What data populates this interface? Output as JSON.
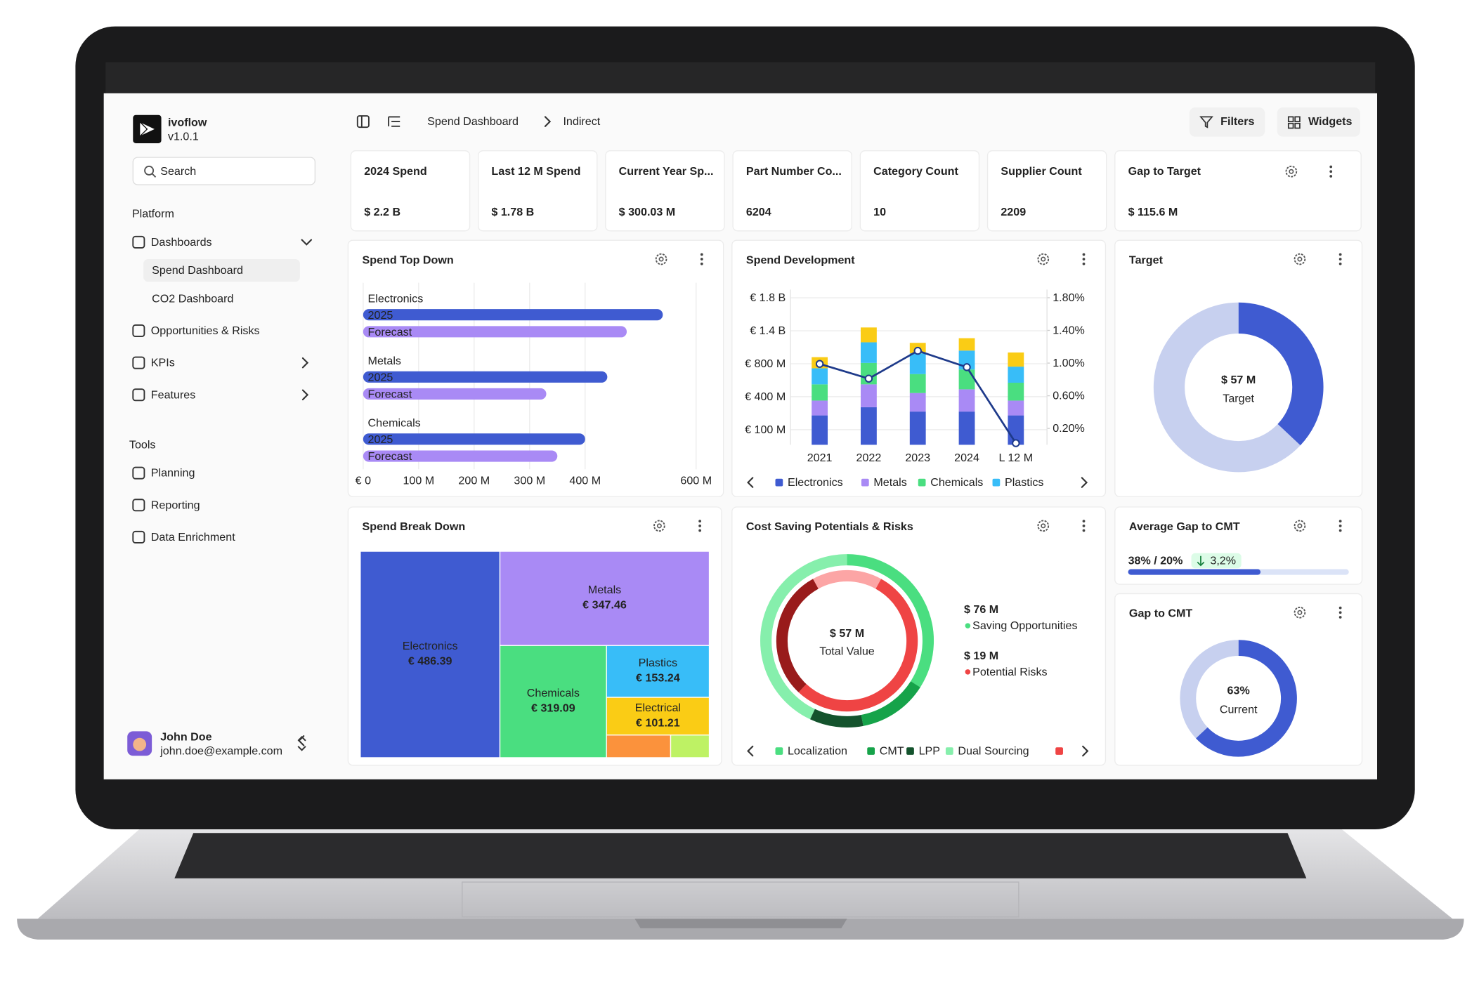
{
  "sidebar": {
    "brand": "ivoflow",
    "version": "v1.0.1",
    "search_placeholder": "Search",
    "sections": [
      {
        "title": "Platform",
        "items": [
          {
            "label": "Dashboards",
            "children": [
              "Spend Dashboard",
              "CO2 Dashboard"
            ]
          },
          {
            "label": "Opportunities & Risks"
          },
          {
            "label": "KPIs"
          },
          {
            "label": "Features"
          }
        ]
      },
      {
        "title": "Tools",
        "items": [
          {
            "label": "Planning"
          },
          {
            "label": "Reporting"
          },
          {
            "label": "Data Enrichment"
          }
        ]
      }
    ],
    "user": {
      "name": "John Doe",
      "email": "john.doe@example.com"
    }
  },
  "header": {
    "breadcrumb": [
      "Spend Dashboard",
      "Indirect"
    ],
    "buttons": [
      "Filters",
      "Widgets"
    ]
  },
  "kpi_cards": [
    {
      "label": "2024 Spend",
      "value": "$ 2.2 B"
    },
    {
      "label": "Last 12 M Spend",
      "value": "$ 1.78 B"
    },
    {
      "label": "Current Year Sp...",
      "value": "$ 300.03 M"
    },
    {
      "label": "Part Number Co...",
      "value": "6204"
    },
    {
      "label": "Category Count",
      "value": "10"
    },
    {
      "label": "Supplier Count",
      "value": "2209"
    },
    {
      "label": "Gap to Target",
      "value": "$ 115.6 M"
    }
  ],
  "chart_data": [
    {
      "type": "bar",
      "orientation": "horizontal",
      "title": "Spend Top Down",
      "categories": [
        "Electronics",
        "Metals",
        "Chemicals"
      ],
      "series": [
        {
          "name": "2025",
          "color": "#3f5bd1",
          "values": [
            540,
            440,
            400
          ]
        },
        {
          "name": "Forecast",
          "color": "#a98af5",
          "values": [
            475,
            330,
            350
          ]
        }
      ],
      "xlim": [
        0,
        600
      ],
      "xticks": [
        {
          "value": 0,
          "label": "€ 0"
        },
        {
          "value": 100,
          "label": "100 M"
        },
        {
          "value": 200,
          "label": "200 M"
        },
        {
          "value": 300,
          "label": "300 M"
        },
        {
          "value": 400,
          "label": "400 M"
        },
        {
          "value": 600,
          "label": "600 M"
        }
      ],
      "grid": true
    },
    {
      "type": "stacked_bar",
      "title": "Spend Development",
      "categories": [
        "2021",
        "2022",
        "2023",
        "2024",
        "L 12 M"
      ],
      "series": [
        {
          "name": "Electronics",
          "color": "#3f5bd1",
          "values": [
            230,
            305,
            265,
            265,
            230
          ]
        },
        {
          "name": "Metals",
          "color": "#a98af5",
          "values": [
            135,
            245,
            180,
            225,
            135
          ]
        },
        {
          "name": "Chemicals",
          "color": "#4ade80",
          "values": [
            185,
            265,
            230,
            240,
            205
          ]
        },
        {
          "name": "Plastics",
          "color": "#38bdf8",
          "values": [
            195,
            375,
            315,
            310,
            195
          ]
        },
        {
          "color": "#facc15",
          "values": [
            175,
            250,
            190,
            225,
            240
          ]
        },
        {
          "color": "#1e3a8a",
          "type": "line",
          "axis": "y2",
          "values": [
            0.99,
            0.81,
            1.15,
            0.95,
            0.02
          ]
        }
      ],
      "ylim": [
        0,
        1900
      ],
      "yticks": [
        {
          "value": 100,
          "label": "€ 100 M"
        },
        {
          "value": 400,
          "label": "€ 400 M"
        },
        {
          "value": 800,
          "label": "€ 800 M"
        },
        {
          "value": 1400,
          "label": "€ 1.4 B"
        },
        {
          "value": 1800,
          "label": "€ 1.8 B"
        }
      ],
      "y2lim": [
        0,
        1.9
      ],
      "y2ticks": [
        {
          "value": 0.2,
          "label": "0.20%"
        },
        {
          "value": 0.6,
          "label": "0.60%"
        },
        {
          "value": 1,
          "label": "1.00%"
        },
        {
          "value": 1.4,
          "label": "1.40%"
        },
        {
          "value": 1.8,
          "label": "1.80%"
        }
      ],
      "grid": true
    },
    {
      "type": "donut",
      "title": "Target",
      "center_value": "$ 57 M",
      "center_label": "Target",
      "values": [
        37,
        63
      ],
      "colors": [
        "#3f5bd1",
        "#c7d0ef"
      ]
    },
    {
      "type": "treemap",
      "title": "Spend Break Down",
      "categories": [
        "Electronics",
        "Metals",
        "Chemicals",
        "Plastics",
        "Electrical",
        null,
        null
      ],
      "values": [
        486.39,
        347.46,
        319.09,
        153.24,
        101.21,
        24,
        14
      ],
      "value_labels": [
        "€ 486.39",
        "€ 347.46",
        "€ 319.09",
        "€ 153.24",
        "€ 101.21",
        null,
        null
      ],
      "colors": [
        "#3f5bd1",
        "#a98af5",
        "#4ade80",
        "#38bdf8",
        "#facc15",
        "#fb923c",
        "#bef264"
      ]
    },
    {
      "type": "donut",
      "title": "Cost Saving Potentials & Risks",
      "center_value": "$ 57 M",
      "center_label": "Total Value",
      "rings": [
        {
          "categories": [
            "Localization",
            "CMT",
            "LPP",
            "Dual Sourcing"
          ],
          "values": [
            34,
            13,
            10,
            43
          ],
          "colors": [
            "#4ade80",
            "#16a34a",
            "#14532d",
            "#86efac"
          ]
        },
        {
          "values": [
            16,
            54,
            30
          ],
          "colors": [
            "#fca5a5",
            "#ef4444",
            "#991b1b"
          ]
        }
      ],
      "stats": [
        {
          "value": "$ 76 M",
          "label": "Saving Opportunities"
        },
        {
          "value": "$ 19 M",
          "label": "Potential Risks"
        }
      ]
    },
    {
      "type": "progress",
      "title": "Average Gap to CMT",
      "summary": "38% / 20%",
      "change": "3,2%",
      "value": 60,
      "xlim": [
        0,
        100
      ],
      "color": "#3f5bd1"
    },
    {
      "type": "donut",
      "title": "Gap to CMT",
      "values": [
        63,
        37
      ],
      "value_labels": [
        "63%",
        null
      ],
      "center_label": "Current",
      "colors": [
        "#3f5bd1",
        "#c7d0ef"
      ]
    }
  ]
}
